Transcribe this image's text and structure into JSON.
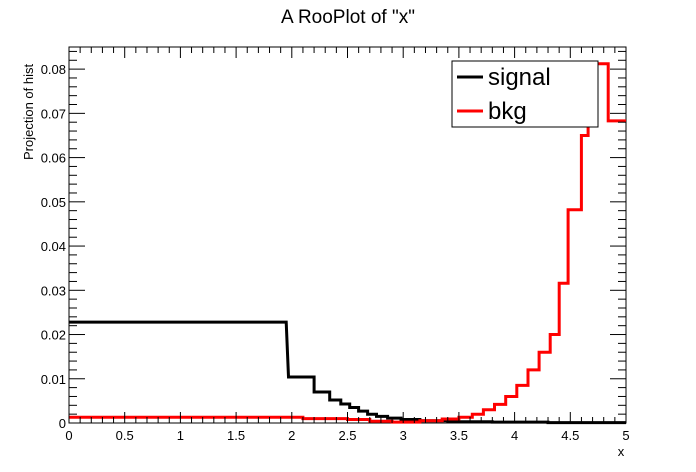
{
  "chart_data": {
    "type": "line",
    "title": "A RooPlot of \"x\"",
    "xlabel": "x",
    "ylabel": "Projection of hist",
    "xlim": [
      0,
      5
    ],
    "ylim": [
      0,
      0.085
    ],
    "grid": false,
    "legend_position": "top-right",
    "x_ticks": [
      "0",
      "0.5",
      "1",
      "1.5",
      "2",
      "2.5",
      "3",
      "3.5",
      "4",
      "4.5",
      "5"
    ],
    "y_ticks": [
      "0",
      "0.01",
      "0.02",
      "0.03",
      "0.04",
      "0.05",
      "0.06",
      "0.07",
      "0.08"
    ],
    "series": [
      {
        "name": "signal",
        "color": "#000000",
        "step": true,
        "points": [
          [
            0.0,
            0.0228
          ],
          [
            1.95,
            0.0228
          ],
          [
            1.97,
            0.0104
          ],
          [
            2.2,
            0.0104
          ],
          [
            2.2,
            0.007
          ],
          [
            2.34,
            0.007
          ],
          [
            2.34,
            0.0052
          ],
          [
            2.44,
            0.0052
          ],
          [
            2.44,
            0.0043
          ],
          [
            2.52,
            0.0043
          ],
          [
            2.52,
            0.0035
          ],
          [
            2.6,
            0.0035
          ],
          [
            2.6,
            0.0027
          ],
          [
            2.68,
            0.0027
          ],
          [
            2.68,
            0.002
          ],
          [
            2.76,
            0.002
          ],
          [
            2.76,
            0.0015
          ],
          [
            2.86,
            0.0015
          ],
          [
            2.86,
            0.0011
          ],
          [
            2.98,
            0.0011
          ],
          [
            2.98,
            0.0008
          ],
          [
            3.15,
            0.0008
          ],
          [
            3.15,
            0.0005
          ],
          [
            3.4,
            0.0005
          ],
          [
            3.4,
            0.0003
          ],
          [
            3.8,
            0.0003
          ],
          [
            3.8,
            0.0002
          ],
          [
            4.3,
            0.0002
          ],
          [
            4.3,
            0.0001
          ],
          [
            5.0,
            0.0001
          ]
        ]
      },
      {
        "name": "bkg",
        "color": "#ff0000",
        "step": true,
        "points": [
          [
            0.0,
            0.0013
          ],
          [
            2.1,
            0.0013
          ],
          [
            2.1,
            0.001
          ],
          [
            2.5,
            0.001
          ],
          [
            2.5,
            0.0008
          ],
          [
            2.7,
            0.0008
          ],
          [
            2.7,
            0.0004
          ],
          [
            2.9,
            0.0004
          ],
          [
            2.9,
            0.0002
          ],
          [
            3.15,
            0.0002
          ],
          [
            3.15,
            0.0005
          ],
          [
            3.35,
            0.0005
          ],
          [
            3.35,
            0.0009
          ],
          [
            3.5,
            0.0009
          ],
          [
            3.5,
            0.0013
          ],
          [
            3.62,
            0.0013
          ],
          [
            3.62,
            0.002
          ],
          [
            3.72,
            0.002
          ],
          [
            3.72,
            0.003
          ],
          [
            3.82,
            0.003
          ],
          [
            3.82,
            0.0042
          ],
          [
            3.92,
            0.0042
          ],
          [
            3.92,
            0.006
          ],
          [
            4.02,
            0.006
          ],
          [
            4.02,
            0.0085
          ],
          [
            4.12,
            0.0085
          ],
          [
            4.12,
            0.012
          ],
          [
            4.22,
            0.012
          ],
          [
            4.22,
            0.016
          ],
          [
            4.32,
            0.016
          ],
          [
            4.32,
            0.02
          ],
          [
            4.4,
            0.02
          ],
          [
            4.4,
            0.0316
          ],
          [
            4.48,
            0.0316
          ],
          [
            4.48,
            0.0482
          ],
          [
            4.6,
            0.0482
          ],
          [
            4.6,
            0.065
          ],
          [
            4.66,
            0.065
          ],
          [
            4.66,
            0.078
          ],
          [
            4.74,
            0.078
          ],
          [
            4.74,
            0.0812
          ],
          [
            4.84,
            0.0812
          ],
          [
            4.84,
            0.0683
          ],
          [
            5.0,
            0.0683
          ]
        ]
      }
    ]
  }
}
